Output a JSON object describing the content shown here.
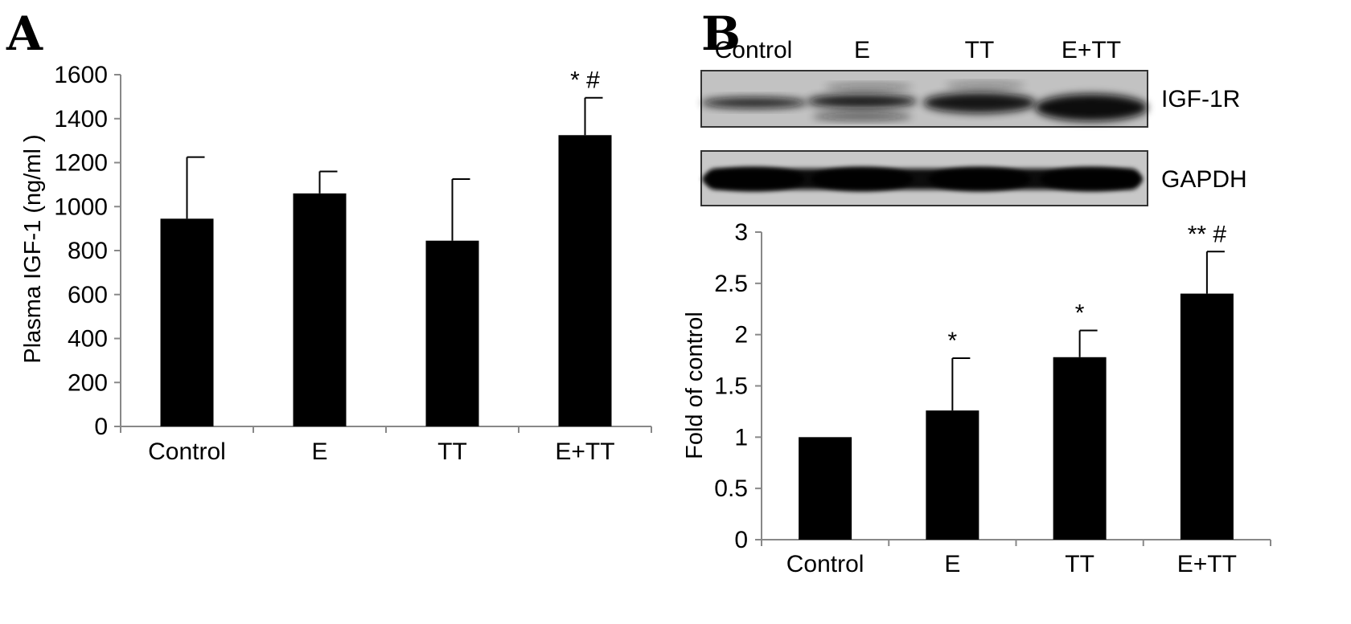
{
  "panels": {
    "a": {
      "letter": "A"
    },
    "b": {
      "letter": "B"
    }
  },
  "blot": {
    "lane_labels": [
      "Control",
      "E",
      "TT",
      "E+TT"
    ],
    "band_labels": [
      "IGF-1R",
      "GAPDH"
    ]
  },
  "chart_data": [
    {
      "type": "bar",
      "panel": "A",
      "title": "",
      "xlabel": "",
      "ylabel": "Plasma IGF-1 (ng/ml )",
      "categories": [
        "Control",
        "E",
        "TT",
        "E+TT"
      ],
      "values": [
        945,
        1060,
        845,
        1325
      ],
      "errors": [
        280,
        100,
        280,
        170
      ],
      "annotations": [
        "",
        "",
        "",
        "* #"
      ],
      "ylim": [
        0,
        1600
      ],
      "yticks": [
        0,
        200,
        400,
        600,
        800,
        1000,
        1200,
        1400,
        1600
      ],
      "ytick_labels": [
        "0",
        "200",
        "400",
        "600",
        "800",
        "1000",
        "1200",
        "1400",
        "1600"
      ],
      "bar_color": "#000000",
      "grid": false
    },
    {
      "type": "bar",
      "panel": "B",
      "title": "",
      "xlabel": "",
      "ylabel": "Fold of control",
      "categories": [
        "Control",
        "E",
        "TT",
        "E+TT"
      ],
      "values": [
        1.0,
        1.26,
        1.78,
        2.4
      ],
      "errors": [
        0,
        0.51,
        0.26,
        0.41
      ],
      "annotations": [
        "",
        "*",
        "*",
        "** #"
      ],
      "ylim": [
        0,
        3
      ],
      "yticks": [
        0,
        0.5,
        1,
        1.5,
        2,
        2.5,
        3
      ],
      "ytick_labels": [
        "0",
        "0.5",
        "1",
        "1.5",
        "2",
        "2.5",
        "3"
      ],
      "bar_color": "#000000",
      "grid": false
    }
  ]
}
